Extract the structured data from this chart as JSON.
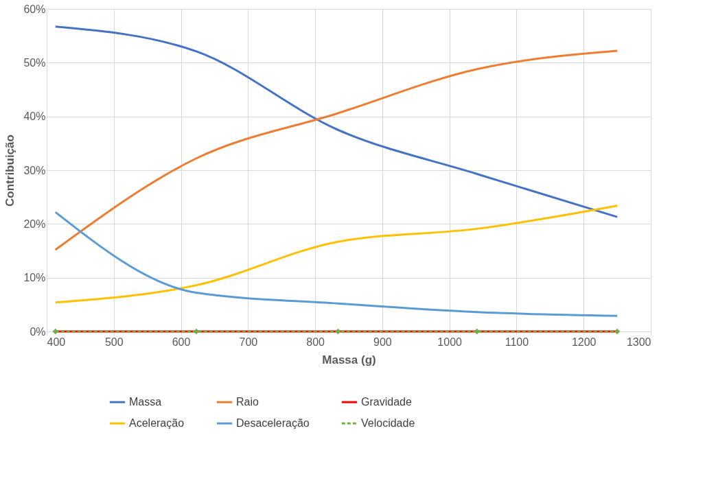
{
  "chart_data": {
    "type": "line",
    "xlabel": "Massa (g)",
    "ylabel": "Contribuição",
    "x": [
      413,
      623,
      834,
      1041,
      1250
    ],
    "series": [
      {
        "name": "Massa",
        "color": "#4472c4",
        "values": [
          56.7,
          52.1,
          37.5,
          29.3,
          21.3
        ]
      },
      {
        "name": "Raio",
        "color": "#ed7d31",
        "values": [
          15.2,
          32.2,
          40.6,
          48.8,
          52.2
        ]
      },
      {
        "name": "Gravidade",
        "color": "#ff0000",
        "values": [
          0,
          0,
          0,
          0,
          0
        ]
      },
      {
        "name": "Aceleração",
        "color": "#ffc000",
        "values": [
          5.4,
          8.6,
          16.7,
          19.1,
          23.4
        ]
      },
      {
        "name": "Desaceleração",
        "color": "#5b9bd5",
        "values": [
          22.2,
          7.2,
          5.2,
          3.6,
          2.9
        ]
      },
      {
        "name": "Velocidade",
        "color": "#70ad47",
        "values": [
          0,
          0,
          0,
          0,
          0
        ],
        "line_style": "dashed",
        "marker": "diamond"
      }
    ],
    "xlim": [
      400,
      1300
    ],
    "xticks": [
      400,
      500,
      600,
      700,
      800,
      900,
      1000,
      1100,
      1200,
      1300
    ],
    "ylim": [
      0,
      60
    ],
    "yticks": [
      {
        "value": 0,
        "label": "0%"
      },
      {
        "value": 10,
        "label": "10%"
      },
      {
        "value": 20,
        "label": "20%"
      },
      {
        "value": 30,
        "label": "30%"
      },
      {
        "value": 40,
        "label": "40%"
      },
      {
        "value": 50,
        "label": "50%"
      },
      {
        "value": 60,
        "label": "60%"
      }
    ],
    "grid": true,
    "legend": "bottom",
    "line_style": "solid",
    "marker": "none"
  }
}
